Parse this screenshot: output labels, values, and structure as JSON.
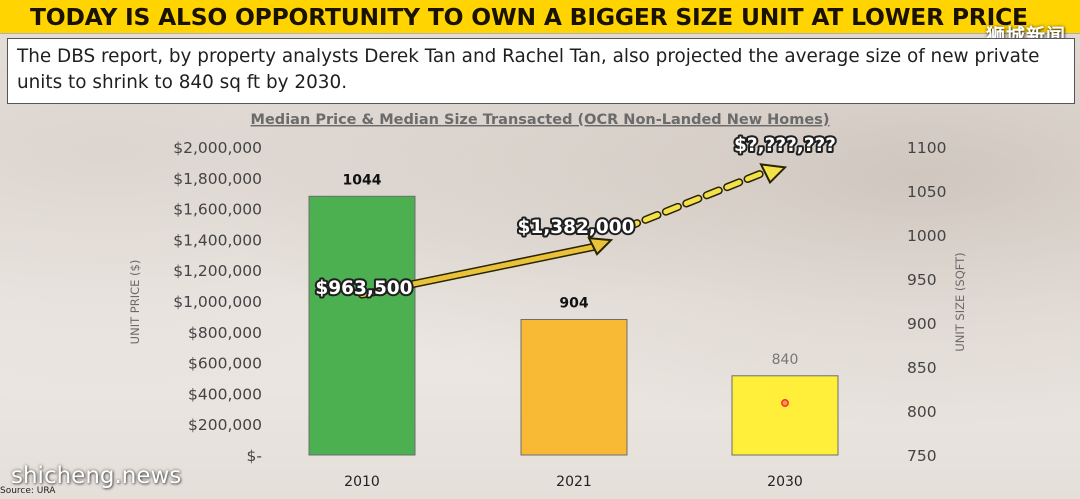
{
  "header": {
    "title": "TODAY IS ALSO OPPORTUNITY TO OWN A BIGGER SIZE UNIT AT LOWER PRICE",
    "watermark": "狮城新闻"
  },
  "note": {
    "text": "The DBS report, by property analysts Derek Tan and Rachel Tan, also projected the average size of new private units to shrink to 840 sq ft by 2030."
  },
  "footer": {
    "watermark": "shicheng.news",
    "source": "Source: URA"
  },
  "colors": {
    "bar_2010": "#4caf50",
    "bar_2021": "#f8b935",
    "bar_2030": "#ffee3a",
    "arrow": "#e8c33a",
    "title_band": "#ffd400"
  },
  "chart_data": {
    "type": "bar",
    "title": "Median Price & Median Size Transacted (OCR Non-Landed New Homes)",
    "categories": [
      "2010",
      "2021",
      "2030"
    ],
    "series": [
      {
        "axis": "right",
        "values": [
          1044,
          904,
          840
        ],
        "labels": [
          "1044",
          "904",
          "840"
        ]
      }
    ],
    "price_annotations": [
      {
        "category": "2010",
        "value": 963500,
        "label": "$963,500"
      },
      {
        "category": "2021",
        "value": 1382000,
        "label": "$1,382,000"
      },
      {
        "category": "2030",
        "value": 1900000,
        "label": "$?,???,???"
      }
    ],
    "ylabel": "UNIT PRICE ($)",
    "ylim": [
      0,
      2000000
    ],
    "yticks": [
      0,
      200000,
      400000,
      600000,
      800000,
      1000000,
      1200000,
      1400000,
      1600000,
      1800000,
      2000000
    ],
    "ytick_labels": [
      "$-",
      "$200,000",
      "$400,000",
      "$600,000",
      "$800,000",
      "$1,000,000",
      "$1,200,000",
      "$1,400,000",
      "$1,600,000",
      "$1,800,000",
      "$2,000,000"
    ],
    "y2label": "UNIT SIZE (SQFT)",
    "y2lim": [
      750,
      1100
    ],
    "y2ticks": [
      750,
      800,
      850,
      900,
      950,
      1000,
      1050,
      1100
    ],
    "y2tick_labels": [
      "750",
      "800",
      "850",
      "900",
      "950",
      "1000",
      "1050",
      "1100"
    ],
    "grid": false
  }
}
